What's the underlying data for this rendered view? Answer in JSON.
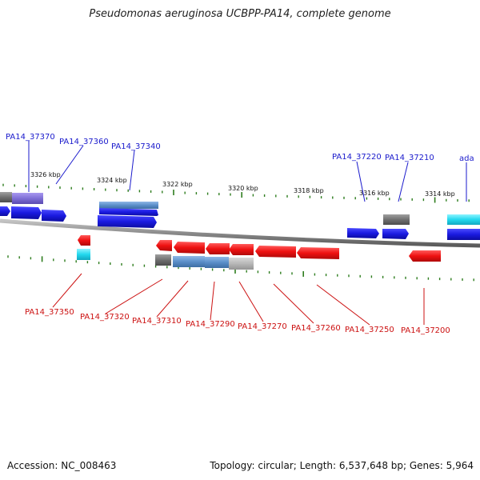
{
  "title": "Pseudomonas aeruginosa UCBPP-PA14, complete genome",
  "footer": {
    "accession": "Accession: NC_008463",
    "topology": "Topology: circular; Length: 6,537,648 bp; Genes: 5,964"
  },
  "colors": {
    "forward_gene": "#1a1ae0",
    "reverse_gene": "#ee1111",
    "forward_label": "#1a1acc",
    "reverse_label": "#cc1111",
    "ticks": "#2e7d1e",
    "backbone": "#8a8a8a",
    "cyan_gene": "#22d8ee",
    "gray_gene": "#707070",
    "steel_gene": "#5b8fc9",
    "purple_gene": "#7f6fd6"
  },
  "scale_labels": [
    "3326 kbp",
    "3324 kbp",
    "3322 kbp",
    "3320 kbp",
    "3318 kbp",
    "3316 kbp",
    "3314 kbp"
  ],
  "forward_labels": [
    "PA14_37370",
    "PA14_37360",
    "PA14_37340",
    "PA14_37220",
    "PA14_37210",
    "ada"
  ],
  "reverse_labels": [
    "PA14_37350",
    "PA14_37320",
    "PA14_37310",
    "PA14_37290",
    "PA14_37270",
    "PA14_37260",
    "PA14_37250",
    "PA14_37200"
  ]
}
